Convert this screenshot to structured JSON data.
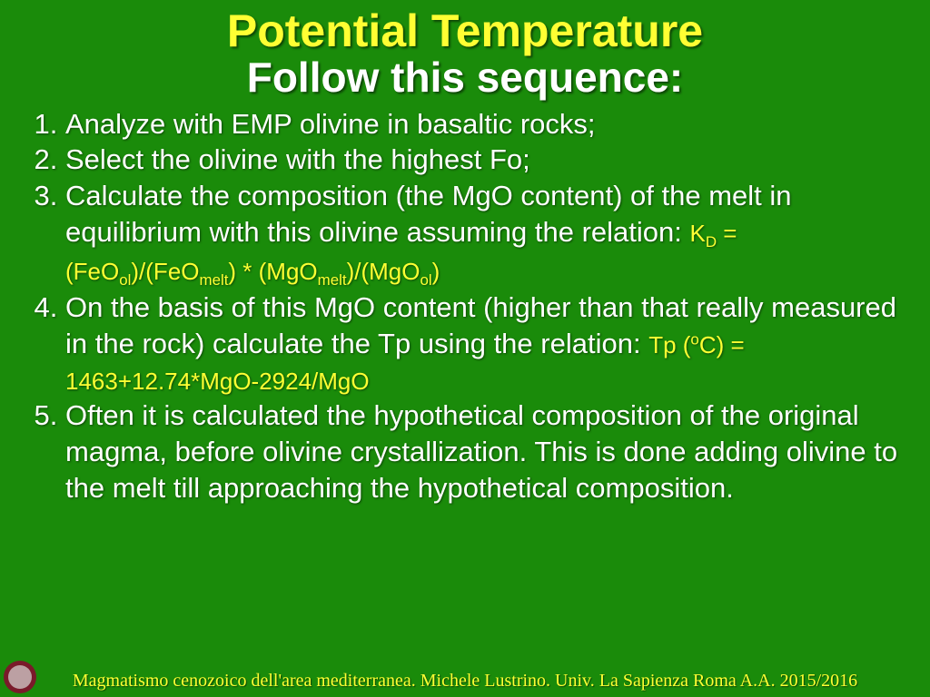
{
  "colors": {
    "background": "#1a8b0a",
    "title": "#ffff33",
    "subtitle": "#ffffff",
    "body_text": "#ffffff",
    "formula": "#ffff33",
    "footer": "#ffff33",
    "crest_bg": "#7a1a2a",
    "crest_inner": "#c8b8b8"
  },
  "title": "Potential Temperature",
  "subtitle": "Follow this sequence:",
  "items": {
    "step1": "Analyze with EMP olivine in basaltic rocks;",
    "step2": " Select the olivine with the highest Fo;",
    "step3_a": "Calculate the composition (the MgO content) of the melt in equilibrium with this olivine assuming the relation:",
    "step3_kd": "K",
    "step3_eq": " = (FeO",
    "step3_ol": "ol",
    "step3_feomelt": ")/(FeO",
    "step3_melt": "melt",
    "step3_mgomelt": ") * (MgO",
    "step3_mgool": ")/(MgO",
    "step3_close": ")",
    "step4_a": "On the basis of this MgO content (higher than that really measured in the rock) calculate the Tp using the relation:",
    "step4_tp": " Tp (",
    "step4_deg": "o",
    "step4_rest": "C) = 1463+12.74*MgO-2924/MgO",
    "step5": "Often it is calculated the hypothetical composition of the original magma, before olivine crystallization. This is done adding olivine to the melt till approaching the hypothetical composition."
  },
  "footer": "Magmatismo cenozoico dell'area mediterranea. Michele Lustrino. Univ. La Sapienza Roma A.A. 2015/2016"
}
